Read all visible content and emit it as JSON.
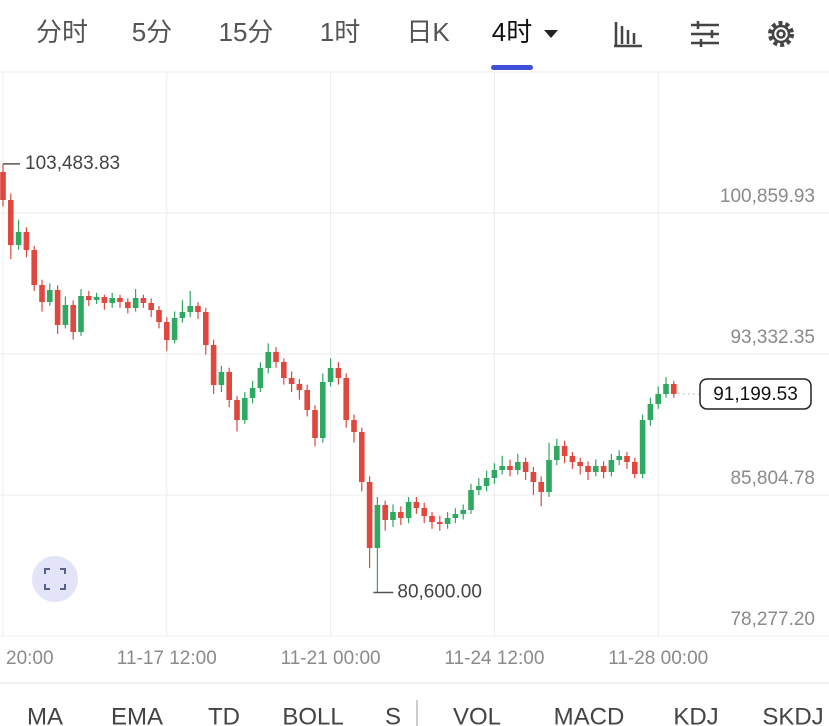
{
  "period_tabs": [
    "分时",
    "5分",
    "15分",
    "1时",
    "日K",
    "4时"
  ],
  "selected_tab": 5,
  "indicator_tabs": [
    "MA",
    "EMA",
    "TD",
    "BOLL",
    "S",
    "VOL",
    "MACD",
    "KDJ",
    "SKDJ"
  ],
  "chart_data": {
    "type": "candlestick",
    "categories": [
      "20:00",
      null,
      null,
      null,
      null,
      null,
      null,
      null,
      null,
      null,
      null,
      null,
      null,
      null,
      null,
      null,
      null,
      null,
      null,
      null,
      null,
      "11-17 12:00",
      null,
      null,
      null,
      null,
      null,
      null,
      null,
      null,
      null,
      null,
      null,
      null,
      null,
      null,
      null,
      null,
      null,
      null,
      null,
      null,
      "11-21 00:00",
      null,
      null,
      null,
      null,
      null,
      null,
      null,
      null,
      null,
      null,
      null,
      null,
      null,
      null,
      null,
      null,
      null,
      null,
      null,
      null,
      "11-24 12:00",
      null,
      null,
      null,
      null,
      null,
      null,
      null,
      null,
      null,
      null,
      null,
      null,
      null,
      null,
      null,
      null,
      null,
      null,
      null,
      null,
      "11-28 00:00",
      null,
      null
    ],
    "open": [
      103050,
      101555,
      99152,
      99847,
      98885,
      97017,
      96109,
      96750,
      94881,
      95949,
      94508,
      96430,
      96216,
      96376,
      96056,
      96323,
      96109,
      95789,
      96323,
      96056,
      95682,
      95041,
      94080,
      95255,
      95575,
      95896,
      95575,
      93813,
      91678,
      92372,
      90877,
      89809,
      90984,
      91518,
      92585,
      93440,
      92906,
      92052,
      91731,
      91411,
      90343,
      88848,
      91838,
      92585,
      92052,
      89809,
      89169,
      86499,
      82975,
      85271,
      84470,
      84897,
      84577,
      85431,
      85111,
      84684,
      84363,
      84257,
      84577,
      84791,
      85004,
      86072,
      86285,
      86713,
      87140,
      87353,
      87140,
      87567,
      87033,
      86499,
      85965,
      87674,
      88421,
      87887,
      87567,
      87353,
      87033,
      87353,
      87033,
      87674,
      87887,
      87567,
      86926,
      89809,
      90663,
      91197,
      91731
    ],
    "high": [
      103483.83,
      101900,
      100500,
      100100,
      99100,
      97300,
      97100,
      97000,
      96400,
      96200,
      96800,
      96700,
      96600,
      96500,
      96600,
      96500,
      96300,
      96800,
      96500,
      96300,
      95900,
      95300,
      95600,
      96200,
      96700,
      96100,
      95800,
      94100,
      92700,
      92600,
      91100,
      91300,
      91900,
      92900,
      93900,
      93700,
      93100,
      92400,
      92000,
      91700,
      90600,
      92300,
      93100,
      92900,
      92300,
      90100,
      89400,
      86800,
      85700,
      85500,
      85300,
      85200,
      85700,
      85700,
      85400,
      84900,
      84700,
      84900,
      85100,
      85300,
      86400,
      86700,
      87100,
      87500,
      87900,
      87700,
      88000,
      87800,
      87300,
      86800,
      88600,
      88800,
      88700,
      88100,
      87800,
      87600,
      87700,
      87600,
      88000,
      88200,
      88100,
      87800,
      90100,
      91000,
      91600,
      92100,
      91900
    ],
    "low": [
      101200,
      98400,
      98900,
      98500,
      96700,
      95600,
      95900,
      94400,
      94700,
      94100,
      94300,
      95900,
      96000,
      95700,
      95800,
      95800,
      95500,
      95600,
      95800,
      95300,
      94700,
      93500,
      93900,
      95000,
      95300,
      95200,
      93300,
      91200,
      91300,
      90500,
      89200,
      89600,
      90700,
      91300,
      92300,
      92600,
      91700,
      91300,
      90900,
      90000,
      88400,
      88600,
      91600,
      91700,
      89400,
      88600,
      86000,
      81900,
      80600.0,
      83900,
      84100,
      84200,
      84300,
      84800,
      84300,
      84000,
      83900,
      84000,
      84300,
      84500,
      84800,
      85800,
      86000,
      86400,
      86900,
      86800,
      86900,
      86600,
      85800,
      85200,
      85700,
      87400,
      87500,
      87200,
      86900,
      86600,
      86800,
      86700,
      86800,
      87400,
      87200,
      86700,
      86700,
      89500,
      90400,
      91000,
      91000
    ],
    "close": [
      101555,
      99152,
      99847,
      98885,
      97017,
      96109,
      96750,
      94881,
      95949,
      94508,
      96430,
      96216,
      96376,
      96056,
      96323,
      96109,
      95789,
      96323,
      96056,
      95682,
      95041,
      94080,
      95255,
      95575,
      95896,
      95575,
      93813,
      91678,
      92372,
      90877,
      89809,
      90984,
      91518,
      92585,
      93440,
      92906,
      92052,
      91731,
      91411,
      90343,
      88848,
      91838,
      92585,
      92052,
      89809,
      89169,
      86499,
      82975,
      85271,
      84470,
      84897,
      84577,
      85431,
      85111,
      84684,
      84363,
      84257,
      84577,
      84791,
      85004,
      86072,
      86285,
      86713,
      87140,
      87353,
      87140,
      87567,
      87033,
      86499,
      85965,
      87674,
      88421,
      87887,
      87567,
      87353,
      87033,
      87353,
      87033,
      87674,
      87887,
      87567,
      86926,
      89809,
      90663,
      91197,
      91731,
      91199.53
    ],
    "up_color": "#2fa860",
    "down_color": "#e0473f",
    "ylim": [
      78277.2,
      108389
    ],
    "yticks": [
      {
        "value": 100859.93,
        "label": "100,859.93"
      },
      {
        "value": 93332.35,
        "label": "93,332.35"
      },
      {
        "value": 85804.78,
        "label": "85,804.78"
      },
      {
        "value": 78277.2,
        "label": "78,277.20"
      }
    ],
    "grid": true,
    "max_label": "103,483.83",
    "min_label": "80,600.00",
    "last_label": "91,199.53"
  }
}
